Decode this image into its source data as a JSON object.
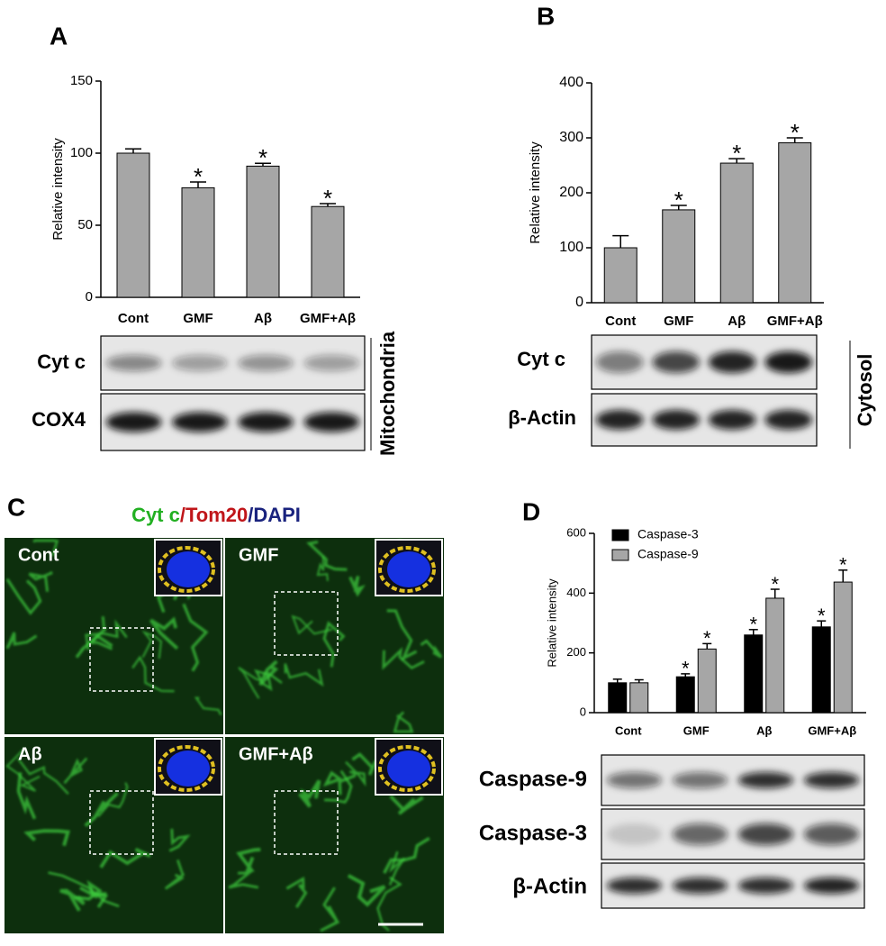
{
  "panels": {
    "A": {
      "letter": "A",
      "blot_labels": [
        "Cyt c",
        "COX4"
      ],
      "fraction": "Mitochondria"
    },
    "B": {
      "letter": "B",
      "blot_labels": [
        "Cyt c",
        "β-Actin"
      ],
      "fraction": "Cytosol"
    },
    "C": {
      "letter": "C",
      "title_parts": [
        "Cyt c",
        "/Tom20",
        "/DAPI"
      ],
      "image_labels": [
        "Cont",
        "GMF",
        "Aβ",
        "GMF+Aβ"
      ]
    },
    "D": {
      "letter": "D",
      "blot_labels": [
        "Caspase-9",
        "Caspase-3",
        "β-Actin"
      ]
    }
  },
  "chart_data": [
    {
      "type": "bar",
      "ylabel": "Relative intensity",
      "categories": [
        "Cont",
        "GMF",
        "Aβ",
        "GMF+Aβ"
      ],
      "values": [
        100,
        76,
        91,
        63
      ],
      "errors": [
        3,
        4,
        2,
        2
      ],
      "significance": [
        null,
        "*",
        "*",
        "*"
      ],
      "color": "#a6a6a6",
      "ylim": [
        0,
        150
      ],
      "yticks": [
        0,
        50,
        100,
        150
      ]
    },
    {
      "type": "bar",
      "ylabel": "Relative intensity",
      "categories": [
        "Cont",
        "GMF",
        "Aβ",
        "GMF+Aβ"
      ],
      "values": [
        100,
        169,
        254,
        291
      ],
      "errors": [
        22,
        8,
        8,
        9
      ],
      "significance": [
        null,
        "*",
        "*",
        "*"
      ],
      "color": "#a6a6a6",
      "ylim": [
        0,
        400
      ],
      "yticks": [
        0,
        100,
        200,
        300,
        400
      ]
    },
    {
      "type": "grouped_bar",
      "ylabel": "Relative intensity",
      "categories": [
        "Cont",
        "GMF",
        "Aβ",
        "GMF+Aβ"
      ],
      "legend": "upper left",
      "series": [
        {
          "name": "Caspase-3",
          "color": "#000000",
          "values": [
            100,
            120,
            260,
            287
          ],
          "errors": [
            12,
            10,
            18,
            20
          ],
          "significance": [
            null,
            "*",
            "*",
            "*"
          ]
        },
        {
          "name": "Caspase-9",
          "color": "#a6a6a6",
          "values": [
            100,
            213,
            383,
            437
          ],
          "errors": [
            10,
            18,
            30,
            40
          ],
          "significance": [
            null,
            "*",
            "*",
            "*"
          ]
        }
      ],
      "ylim": [
        0,
        600
      ],
      "yticks": [
        0,
        200,
        400,
        600
      ]
    }
  ]
}
